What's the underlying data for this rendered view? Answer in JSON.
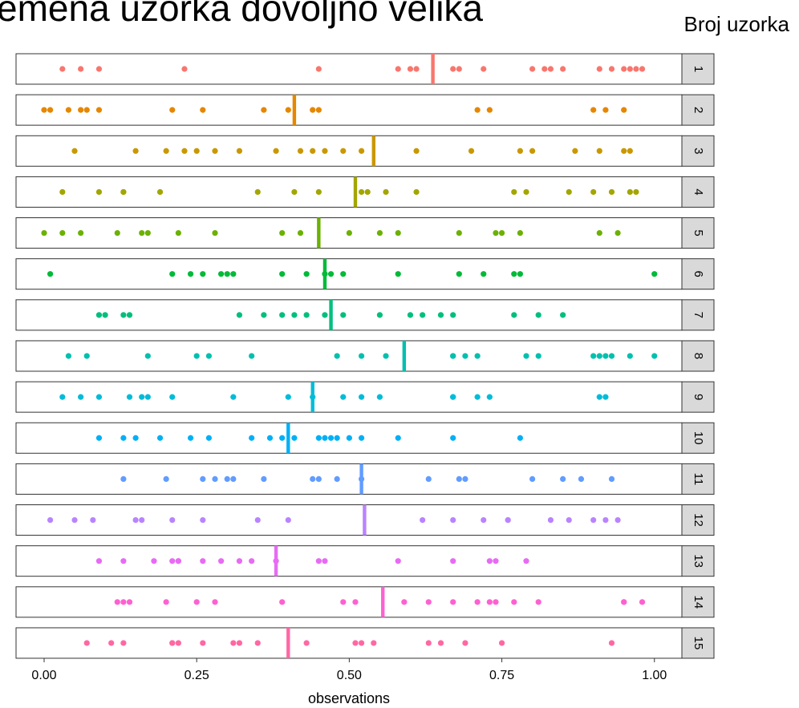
{
  "chart_data": {
    "type": "strip",
    "title": "emena uzorka dovoljno velika",
    "strip_title": "Broj uzorka",
    "x_label": "observations",
    "xlim": [
      -0.046,
      1.045
    ],
    "xticks": [
      {
        "value": 0,
        "label": "0.00"
      },
      {
        "value": 0.25,
        "label": "0.25"
      },
      {
        "value": 0.5,
        "label": "0.50"
      },
      {
        "value": 0.75,
        "label": "0.75"
      },
      {
        "value": 1,
        "label": "1.00"
      }
    ],
    "series": [
      {
        "name": "1",
        "color": "#F8766D",
        "mean": 0.637,
        "values": [
          0.03,
          0.06,
          0.09,
          0.23,
          0.45,
          0.58,
          0.6,
          0.61,
          0.67,
          0.68,
          0.72,
          0.8,
          0.82,
          0.83,
          0.85,
          0.91,
          0.93,
          0.95,
          0.96,
          0.97,
          0.98
        ]
      },
      {
        "name": "2",
        "color": "#E58700",
        "mean": 0.41,
        "values": [
          0.0,
          0.01,
          0.04,
          0.06,
          0.07,
          0.09,
          0.21,
          0.26,
          0.36,
          0.4,
          0.44,
          0.45,
          0.71,
          0.73,
          0.9,
          0.92,
          0.95
        ]
      },
      {
        "name": "3",
        "color": "#C99800",
        "mean": 0.54,
        "values": [
          0.05,
          0.15,
          0.2,
          0.23,
          0.25,
          0.28,
          0.32,
          0.38,
          0.42,
          0.44,
          0.46,
          0.49,
          0.52,
          0.61,
          0.7,
          0.78,
          0.8,
          0.87,
          0.91,
          0.95,
          0.96
        ]
      },
      {
        "name": "4",
        "color": "#A3A500",
        "mean": 0.51,
        "values": [
          0.03,
          0.09,
          0.13,
          0.13,
          0.19,
          0.35,
          0.41,
          0.45,
          0.52,
          0.53,
          0.56,
          0.61,
          0.77,
          0.79,
          0.86,
          0.9,
          0.93,
          0.96,
          0.97
        ]
      },
      {
        "name": "5",
        "color": "#6BB100",
        "mean": 0.45,
        "values": [
          0.0,
          0.03,
          0.06,
          0.12,
          0.16,
          0.17,
          0.22,
          0.28,
          0.39,
          0.42,
          0.5,
          0.55,
          0.58,
          0.68,
          0.74,
          0.75,
          0.78,
          0.91,
          0.94
        ]
      },
      {
        "name": "6",
        "color": "#00BA38",
        "mean": 0.46,
        "values": [
          0.01,
          0.21,
          0.24,
          0.26,
          0.29,
          0.3,
          0.31,
          0.39,
          0.43,
          0.46,
          0.47,
          0.49,
          0.58,
          0.68,
          0.72,
          0.77,
          0.78,
          1.0
        ]
      },
      {
        "name": "7",
        "color": "#00BF7D",
        "mean": 0.47,
        "values": [
          0.09,
          0.1,
          0.13,
          0.14,
          0.32,
          0.36,
          0.39,
          0.41,
          0.43,
          0.46,
          0.49,
          0.55,
          0.6,
          0.62,
          0.65,
          0.67,
          0.77,
          0.81,
          0.85
        ]
      },
      {
        "name": "8",
        "color": "#00C0AF",
        "mean": 0.59,
        "values": [
          0.04,
          0.07,
          0.17,
          0.25,
          0.27,
          0.34,
          0.48,
          0.52,
          0.56,
          0.67,
          0.67,
          0.69,
          0.71,
          0.79,
          0.81,
          0.9,
          0.91,
          0.92,
          0.93,
          0.96,
          1.0
        ]
      },
      {
        "name": "9",
        "color": "#00BCD8",
        "mean": 0.44,
        "values": [
          0.03,
          0.06,
          0.09,
          0.14,
          0.16,
          0.17,
          0.21,
          0.31,
          0.4,
          0.44,
          0.49,
          0.52,
          0.55,
          0.67,
          0.67,
          0.71,
          0.73,
          0.91,
          0.92
        ]
      },
      {
        "name": "10",
        "color": "#00B0F6",
        "mean": 0.4,
        "values": [
          0.09,
          0.13,
          0.15,
          0.19,
          0.24,
          0.27,
          0.34,
          0.37,
          0.39,
          0.41,
          0.45,
          0.46,
          0.47,
          0.48,
          0.5,
          0.52,
          0.58,
          0.67,
          0.78
        ]
      },
      {
        "name": "11",
        "color": "#619CFF",
        "mean": 0.52,
        "values": [
          0.13,
          0.2,
          0.26,
          0.28,
          0.3,
          0.31,
          0.36,
          0.44,
          0.45,
          0.48,
          0.52,
          0.63,
          0.68,
          0.69,
          0.8,
          0.85,
          0.88,
          0.93
        ]
      },
      {
        "name": "12",
        "color": "#B983FF",
        "mean": 0.525,
        "values": [
          0.01,
          0.05,
          0.08,
          0.15,
          0.16,
          0.21,
          0.26,
          0.35,
          0.4,
          0.62,
          0.67,
          0.72,
          0.76,
          0.76,
          0.83,
          0.86,
          0.9,
          0.92,
          0.94
        ]
      },
      {
        "name": "13",
        "color": "#E76BF3",
        "mean": 0.38,
        "values": [
          0.09,
          0.13,
          0.18,
          0.21,
          0.22,
          0.22,
          0.26,
          0.29,
          0.32,
          0.34,
          0.38,
          0.45,
          0.46,
          0.58,
          0.67,
          0.73,
          0.74,
          0.79
        ]
      },
      {
        "name": "14",
        "color": "#FD61D1",
        "mean": 0.555,
        "values": [
          0.12,
          0.13,
          0.14,
          0.2,
          0.25,
          0.28,
          0.39,
          0.49,
          0.51,
          0.59,
          0.63,
          0.67,
          0.71,
          0.73,
          0.74,
          0.77,
          0.81,
          0.95,
          0.95,
          0.98
        ]
      },
      {
        "name": "15",
        "color": "#FF67A4",
        "mean": 0.4,
        "values": [
          0.07,
          0.11,
          0.13,
          0.21,
          0.21,
          0.22,
          0.26,
          0.31,
          0.32,
          0.35,
          0.43,
          0.51,
          0.52,
          0.54,
          0.63,
          0.65,
          0.69,
          0.75,
          0.93
        ]
      }
    ]
  }
}
